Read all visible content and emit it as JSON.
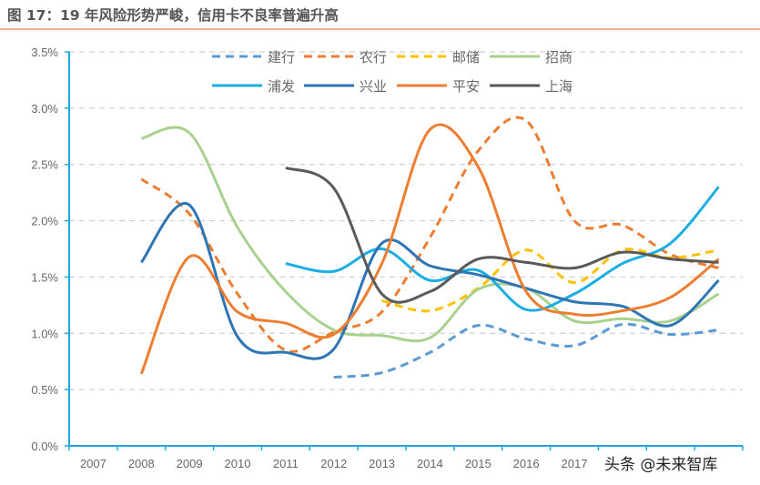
{
  "title": "图 17：19 年风险形势严峻，信用卡不良率普遍升高",
  "watermark": "头条 @未来智库",
  "chart_data": {
    "type": "line",
    "title": "图 17：19 年风险形势严峻，信用卡不良率普遍升高",
    "xlabel": "",
    "ylabel": "",
    "categories": [
      "2007",
      "2008",
      "2009",
      "2010",
      "2011",
      "2012",
      "2013",
      "2014",
      "2015",
      "2016",
      "2017",
      "",
      "",
      ""
    ],
    "yticks": [
      "0.0%",
      "0.5%",
      "1.0%",
      "1.5%",
      "2.0%",
      "2.5%",
      "3.0%",
      "3.5%"
    ],
    "ylim": [
      0,
      3.5
    ],
    "y_unit": "%",
    "grid": true,
    "smooth": true,
    "legend_position": "top",
    "series": [
      {
        "name": "建行",
        "color": "#5B9BD5",
        "dashed": true,
        "values": [
          null,
          null,
          null,
          null,
          null,
          0.61,
          0.65,
          0.83,
          1.07,
          0.95,
          0.89,
          1.08,
          0.99,
          1.03
        ]
      },
      {
        "name": "农行",
        "color": "#ED7D31",
        "dashed": true,
        "values": [
          null,
          2.37,
          2.06,
          1.35,
          0.85,
          1.01,
          1.19,
          1.85,
          2.62,
          2.89,
          2.0,
          1.96,
          1.7,
          1.58
        ]
      },
      {
        "name": "邮储",
        "color": "#FFC000",
        "dashed": true,
        "values": [
          null,
          null,
          null,
          null,
          null,
          null,
          1.29,
          1.2,
          1.4,
          1.74,
          1.45,
          1.74,
          1.67,
          1.74
        ]
      },
      {
        "name": "招商",
        "color": "#A9D18E",
        "dashed": false,
        "values": [
          null,
          2.73,
          2.78,
          1.94,
          1.37,
          1.03,
          0.98,
          0.96,
          1.39,
          1.4,
          1.11,
          1.13,
          1.11,
          1.35
        ]
      },
      {
        "name": "浦发",
        "color": "#1AAEE5",
        "dashed": false,
        "values": [
          null,
          null,
          null,
          null,
          1.62,
          1.55,
          1.75,
          1.47,
          1.56,
          1.21,
          1.35,
          1.62,
          1.8,
          2.3
        ]
      },
      {
        "name": "兴业",
        "color": "#2E75B6",
        "dashed": false,
        "values": [
          null,
          1.63,
          2.14,
          0.97,
          0.83,
          0.86,
          1.8,
          1.6,
          1.52,
          1.4,
          1.28,
          1.24,
          1.07,
          1.47
        ]
      },
      {
        "name": "平安",
        "color": "#ED7D31",
        "dashed": false,
        "values": [
          null,
          0.64,
          1.68,
          1.19,
          1.09,
          0.99,
          1.62,
          2.81,
          2.48,
          1.37,
          1.17,
          1.2,
          1.32,
          1.66
        ]
      },
      {
        "name": "上海",
        "color": "#595959",
        "dashed": false,
        "values": [
          null,
          null,
          null,
          null,
          2.47,
          2.29,
          1.35,
          1.37,
          1.66,
          1.63,
          1.58,
          1.72,
          1.66,
          1.63
        ]
      }
    ],
    "axis_color": "#1EA7E1",
    "grid_color": "#D0D0D0"
  }
}
